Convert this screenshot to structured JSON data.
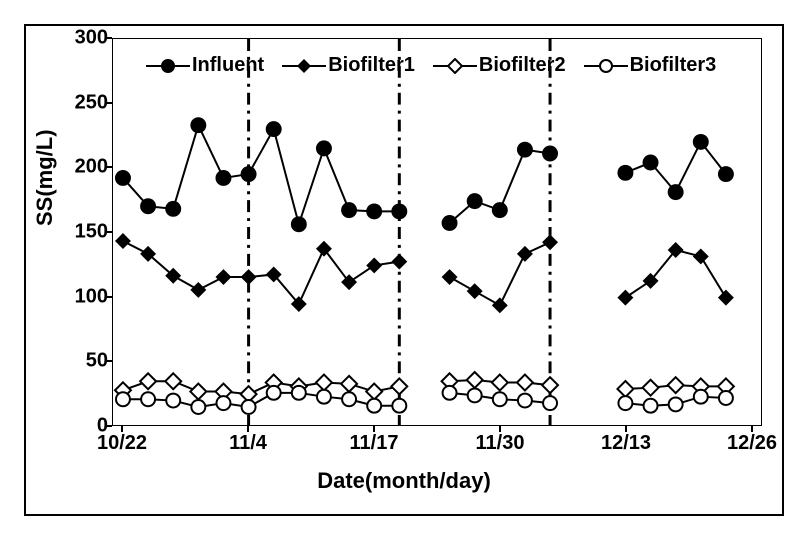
{
  "chart": {
    "type": "line",
    "title": "",
    "xlabel": "Date(month/day)",
    "ylabel": "SS(mg/L)",
    "label_fontsize": 22,
    "tick_fontsize": 20,
    "background_color": "#ffffff",
    "border_color": "#000000",
    "ylim": [
      0,
      300
    ],
    "ytick_step": 50,
    "yticks": [
      0,
      50,
      100,
      150,
      200,
      250,
      300
    ],
    "xticks": [
      "10/22",
      "11/4",
      "11/17",
      "11/30",
      "12/13",
      "12/26"
    ],
    "x_index_range": [
      0,
      25
    ],
    "vertical_dash_lines_x_index": [
      5,
      11,
      17
    ],
    "vertical_dash_style": "dash-dot",
    "vertical_dash_color": "#000000",
    "vertical_dash_width": 3,
    "line_width": 2,
    "marker_size": 8,
    "series": [
      {
        "name": "Influent",
        "color": "#000000",
        "marker": "circle-filled",
        "values": [
          192,
          170,
          168,
          233,
          192,
          195,
          230,
          156,
          215,
          167,
          166,
          166,
          null,
          157,
          174,
          167,
          214,
          211,
          null,
          null,
          196,
          204,
          181,
          220,
          195
        ]
      },
      {
        "name": "Biofilter1",
        "color": "#000000",
        "marker": "diamond-filled",
        "values": [
          143,
          133,
          116,
          105,
          115,
          115,
          117,
          94,
          137,
          111,
          124,
          127,
          null,
          115,
          104,
          93,
          133,
          142,
          null,
          null,
          99,
          112,
          136,
          131,
          99
        ]
      },
      {
        "name": "Biofilter2",
        "color": "#000000",
        "marker": "diamond-open",
        "values": [
          27,
          34,
          34,
          26,
          26,
          24,
          33,
          30,
          33,
          32,
          26,
          30,
          null,
          34,
          35,
          33,
          33,
          31,
          null,
          null,
          28,
          29,
          31,
          30,
          30
        ]
      },
      {
        "name": "Biofilter3",
        "color": "#000000",
        "marker": "circle-open",
        "values": [
          20,
          20,
          19,
          14,
          17,
          14,
          25,
          25,
          22,
          20,
          15,
          15,
          null,
          25,
          23,
          20,
          19,
          17,
          null,
          null,
          17,
          15,
          16,
          22,
          21
        ]
      }
    ],
    "legend": {
      "position": "top-inside",
      "items": [
        "Influent",
        "Biofilter1",
        "Biofilter2",
        "Biofilter3"
      ]
    }
  }
}
